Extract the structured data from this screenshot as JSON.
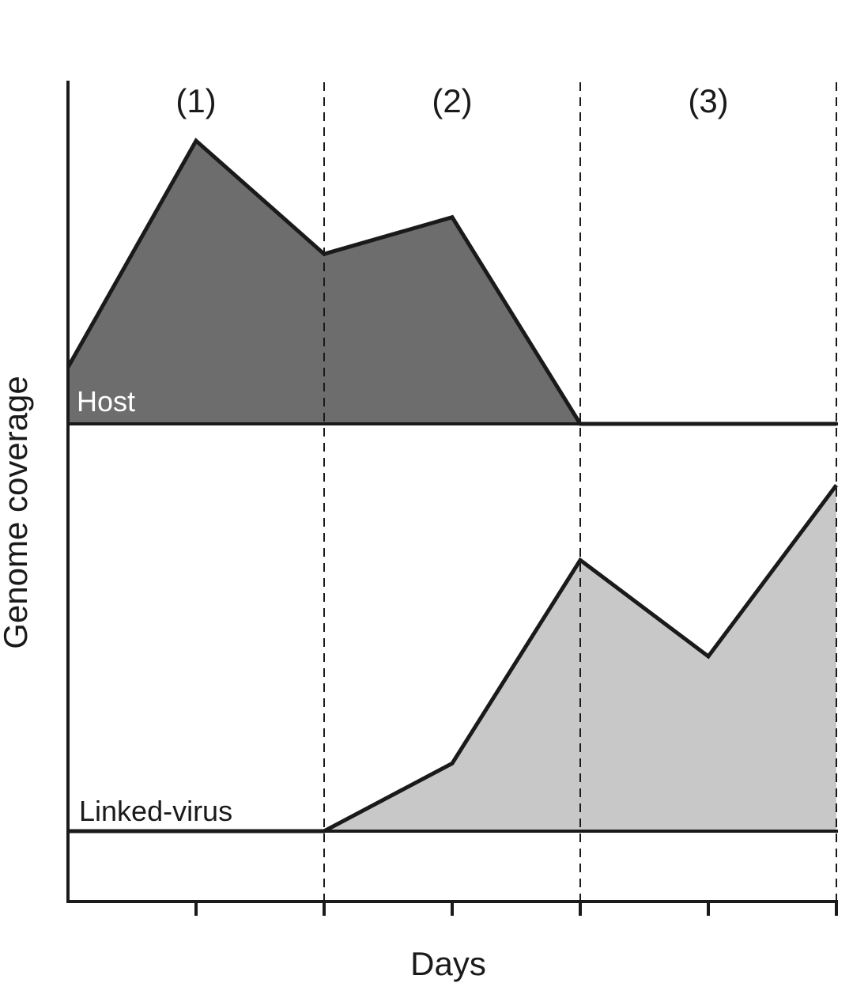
{
  "chart_data": {
    "type": "area",
    "title": "",
    "xlabel": "Days",
    "ylabel": "Genome coverage",
    "phase_labels": [
      "(1)",
      "(2)",
      "(3)"
    ],
    "phase_boundaries": [
      2,
      4,
      6
    ],
    "x_ticks": [
      1,
      2,
      3,
      4,
      5,
      6
    ],
    "xlim": [
      0,
      6
    ],
    "grid": false,
    "legend": "none",
    "series": [
      {
        "name": "Host",
        "fill": "#6d6d6d",
        "x": [
          0,
          1,
          2,
          3,
          4,
          5,
          6
        ],
        "values": [
          0.2,
          1.0,
          0.6,
          0.73,
          0,
          0,
          0
        ]
      },
      {
        "name": "Linked-virus",
        "fill": "#c8c8c8",
        "x": [
          0,
          1,
          2,
          3,
          4,
          5,
          6
        ],
        "values": [
          0,
          0,
          0,
          0.19,
          0.76,
          0.49,
          0.97
        ]
      }
    ]
  }
}
